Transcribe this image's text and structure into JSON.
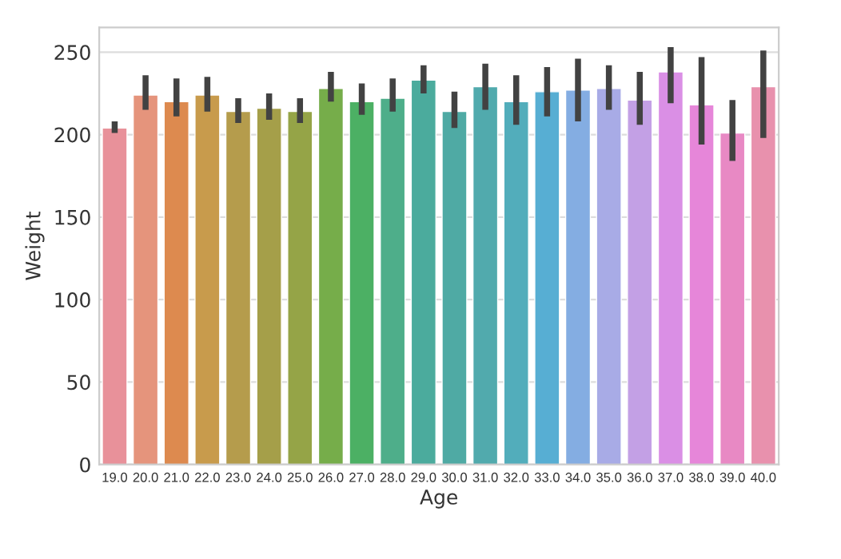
{
  "chart_data": {
    "type": "bar",
    "xlabel": "Age",
    "ylabel": "Weight",
    "categories": [
      "19.0",
      "20.0",
      "21.0",
      "22.0",
      "23.0",
      "24.0",
      "25.0",
      "26.0",
      "27.0",
      "28.0",
      "29.0",
      "30.0",
      "31.0",
      "32.0",
      "33.0",
      "34.0",
      "35.0",
      "36.0",
      "37.0",
      "38.0",
      "39.0",
      "40.0"
    ],
    "values": [
      204,
      224,
      220,
      224,
      214,
      216,
      214,
      228,
      220,
      222,
      233,
      214,
      229,
      220,
      226,
      227,
      228,
      221,
      238,
      218,
      201,
      229
    ],
    "errors": [
      [
        201,
        208
      ],
      [
        215,
        236
      ],
      [
        211,
        234
      ],
      [
        214,
        235
      ],
      [
        207,
        222
      ],
      [
        209,
        225
      ],
      [
        207,
        222
      ],
      [
        220,
        238
      ],
      [
        212,
        231
      ],
      [
        214,
        234
      ],
      [
        225,
        242
      ],
      [
        204,
        226
      ],
      [
        215,
        243
      ],
      [
        206,
        236
      ],
      [
        211,
        241
      ],
      [
        208,
        246
      ],
      [
        215,
        242
      ],
      [
        206,
        238
      ],
      [
        219,
        253
      ],
      [
        194,
        247
      ],
      [
        184,
        221
      ],
      [
        198,
        251
      ]
    ],
    "colors": [
      "#e8919a",
      "#e5947c",
      "#dd8a4f",
      "#c89b4c",
      "#b59c4c",
      "#a59f49",
      "#95a447",
      "#76ad4a",
      "#4cb064",
      "#4eae8a",
      "#4bab9d",
      "#4faaa4",
      "#51aaad",
      "#52adbb",
      "#57aed3",
      "#84ade2",
      "#a8abe6",
      "#c3a0e5",
      "#da8fe5",
      "#e686d9",
      "#e889c4",
      "#e891ad"
    ],
    "ylim": [
      0,
      265
    ],
    "yticks": [
      0,
      50,
      100,
      150,
      200,
      250
    ],
    "grid": "y"
  }
}
